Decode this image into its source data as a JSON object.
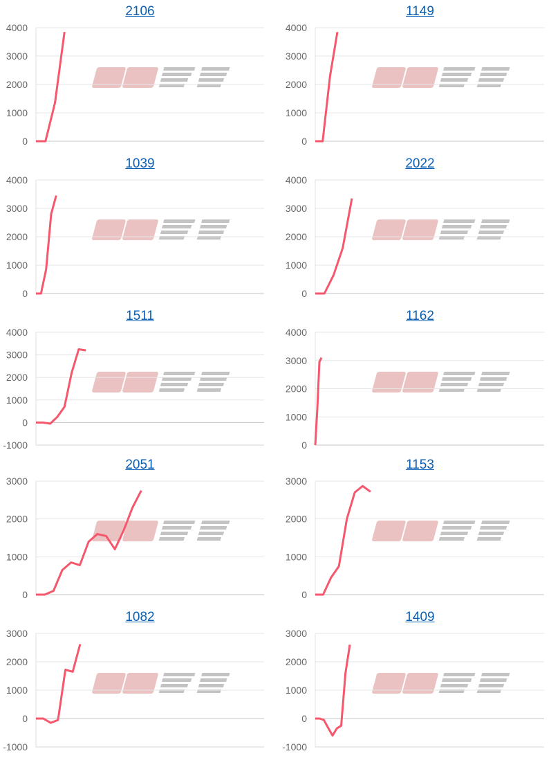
{
  "line_color": "#f5576c",
  "title_color": "#0b5fb3",
  "chart_data": [
    {
      "type": "line",
      "title": "2106",
      "ylim": [
        0,
        4000
      ],
      "xlim": [
        0,
        24
      ],
      "values": [
        0,
        0,
        1350,
        3850
      ],
      "grid": true
    },
    {
      "type": "line",
      "title": "1149",
      "ylim": [
        0,
        4000
      ],
      "xlim": [
        0,
        31
      ],
      "values": [
        0,
        0,
        2300,
        3850
      ],
      "grid": true
    },
    {
      "type": "line",
      "title": "1039",
      "ylim": [
        0,
        4000
      ],
      "xlim": [
        0,
        45
      ],
      "values": [
        0,
        0,
        850,
        2800,
        3450
      ],
      "grid": true
    },
    {
      "type": "line",
      "title": "2022",
      "ylim": [
        0,
        4000
      ],
      "xlim": [
        0,
        25
      ],
      "values": [
        0,
        0,
        650,
        1600,
        3350
      ],
      "grid": true
    },
    {
      "type": "line",
      "title": "1511",
      "ylim": [
        -1000,
        4000
      ],
      "xlim": [
        0,
        32
      ],
      "values": [
        0,
        0,
        -50,
        250,
        700,
        2200,
        3250,
        3200
      ],
      "grid": true
    },
    {
      "type": "line",
      "title": "1162",
      "ylim": [
        0,
        4000
      ],
      "xlim": [
        0,
        110
      ],
      "values": [
        0,
        1300,
        2950,
        3100
      ],
      "grid": true
    },
    {
      "type": "line",
      "title": "2051",
      "ylim": [
        0,
        3000
      ],
      "xlim": [
        0,
        26
      ],
      "values": [
        0,
        0,
        100,
        650,
        850,
        780,
        1400,
        1600,
        1550,
        1200,
        1700,
        2300,
        2750
      ],
      "grid": true
    },
    {
      "type": "line",
      "title": "1153",
      "ylim": [
        0,
        3000
      ],
      "xlim": [
        0,
        29
      ],
      "values": [
        0,
        0,
        450,
        750,
        2000,
        2700,
        2870,
        2720
      ],
      "grid": true
    },
    {
      "type": "line",
      "title": "1082",
      "ylim": [
        -1000,
        3000
      ],
      "xlim": [
        0,
        31
      ],
      "values": [
        0,
        0,
        -150,
        -50,
        1720,
        1650,
        2620
      ],
      "grid": true
    },
    {
      "type": "line",
      "title": "1409",
      "ylim": [
        -1000,
        3000
      ],
      "xlim": [
        0,
        53
      ],
      "values": [
        0,
        0,
        -50,
        -330,
        -600,
        -350,
        -250,
        1600,
        2600
      ],
      "grid": true
    }
  ]
}
